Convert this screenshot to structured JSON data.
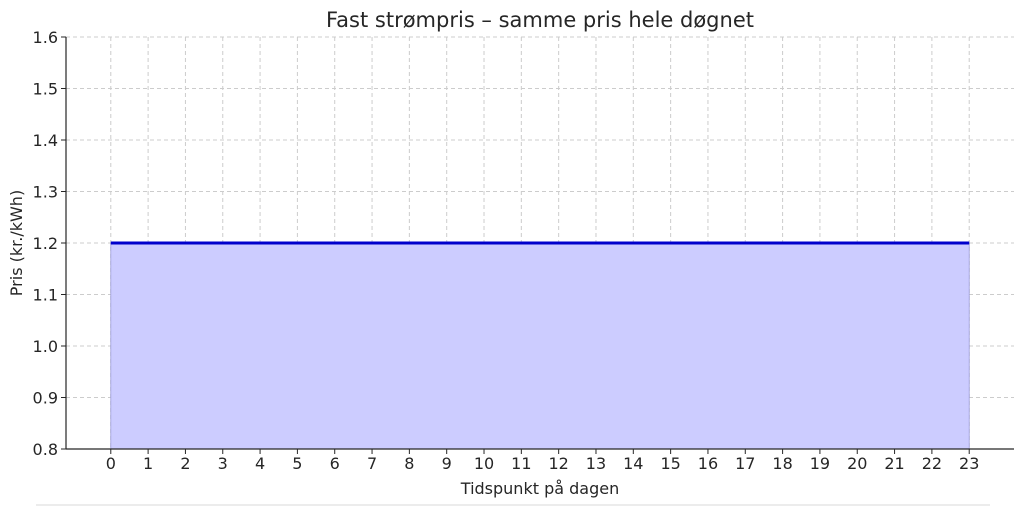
{
  "chart_data": {
    "type": "area",
    "title": "Fast strømpris – samme pris hele døgnet",
    "xlabel": "Tidspunkt på dagen",
    "ylabel": "Pris (kr./kWh)",
    "x": [
      0,
      1,
      2,
      3,
      4,
      5,
      6,
      7,
      8,
      9,
      10,
      11,
      12,
      13,
      14,
      15,
      16,
      17,
      18,
      19,
      20,
      21,
      22,
      23
    ],
    "series": [
      {
        "values": [
          1.2,
          1.2,
          1.2,
          1.2,
          1.2,
          1.2,
          1.2,
          1.2,
          1.2,
          1.2,
          1.2,
          1.2,
          1.2,
          1.2,
          1.2,
          1.2,
          1.2,
          1.2,
          1.2,
          1.2,
          1.2,
          1.2,
          1.2,
          1.2
        ],
        "line_color": "#0000cc",
        "fill_color": "#ccccff"
      }
    ],
    "xlim": [
      -1.2,
      24.2
    ],
    "ylim": [
      0.8,
      1.6
    ],
    "xticks": [
      "0",
      "1",
      "2",
      "3",
      "4",
      "5",
      "6",
      "7",
      "8",
      "9",
      "10",
      "11",
      "12",
      "13",
      "14",
      "15",
      "16",
      "17",
      "18",
      "19",
      "20",
      "21",
      "22",
      "23"
    ],
    "yticks": [
      "0.8",
      "0.9",
      "1.0",
      "1.1",
      "1.2",
      "1.3",
      "1.4",
      "1.5",
      "1.6"
    ],
    "grid": true,
    "legend": "none"
  }
}
